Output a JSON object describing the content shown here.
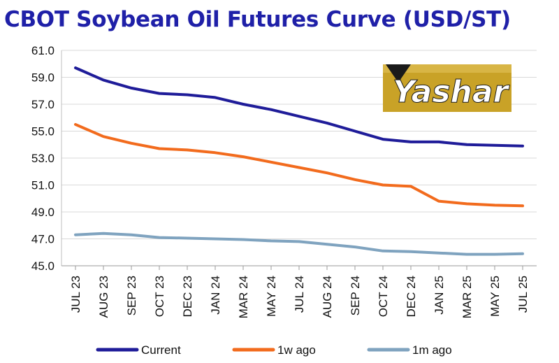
{
  "title": "CBOT Soybean Oil Futures Curve (USD/ST)",
  "logo": {
    "text": "Yashar",
    "colors": {
      "gold": "#c9a227",
      "dark": "#1a1a1a"
    }
  },
  "chart_data": {
    "type": "line",
    "title": "CBOT Soybean Oil Futures Curve (USD/ST)",
    "xlabel": "",
    "ylabel": "",
    "ylim": [
      45.0,
      61.0
    ],
    "yticks": [
      "45.0",
      "47.0",
      "49.0",
      "51.0",
      "53.0",
      "55.0",
      "57.0",
      "59.0",
      "61.0"
    ],
    "grid": true,
    "legend": "bottom",
    "categories": [
      "JUL 23",
      "AUG 23",
      "SEP 23",
      "OCT 23",
      "DEC 23",
      "JAN 24",
      "MAR 24",
      "MAY 24",
      "JUL 24",
      "AUG 24",
      "SEP 24",
      "OCT 24",
      "DEC 24",
      "JAN 25",
      "MAR 25",
      "MAY 25",
      "JUL 25"
    ],
    "series": [
      {
        "name": "Current",
        "color": "#1f1c99",
        "values": [
          59.7,
          58.8,
          58.2,
          57.8,
          57.7,
          57.5,
          57.0,
          56.6,
          56.1,
          55.6,
          55.0,
          54.4,
          54.2,
          54.2,
          54.0,
          53.95,
          53.9
        ]
      },
      {
        "name": "1w ago",
        "color": "#f26b1d",
        "values": [
          55.5,
          54.6,
          54.1,
          53.7,
          53.6,
          53.4,
          53.1,
          52.7,
          52.3,
          51.9,
          51.4,
          51.0,
          50.9,
          49.8,
          49.6,
          49.5,
          49.45
        ]
      },
      {
        "name": "1m ago",
        "color": "#7fa3bf",
        "values": [
          47.3,
          47.4,
          47.3,
          47.1,
          47.05,
          47.0,
          46.95,
          46.85,
          46.8,
          46.6,
          46.4,
          46.1,
          46.05,
          45.95,
          45.85,
          45.85,
          45.9
        ]
      }
    ]
  }
}
